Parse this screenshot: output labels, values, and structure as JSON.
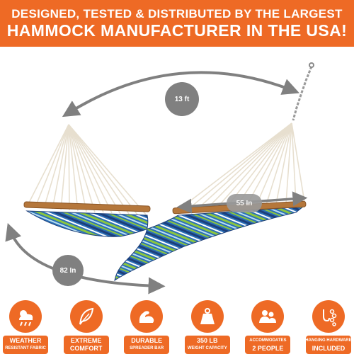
{
  "banner": {
    "line1": "DESIGNED, TESTED & DISTRIBUTED BY THE LARGEST",
    "line2": "HAMMOCK MANUFACTURER IN THE USA!",
    "color": "#ee6a25"
  },
  "dimensions": {
    "length": "13 ft",
    "spreader": "55 In",
    "bed": "82 In"
  },
  "colors": {
    "accent": "#ee6a25",
    "dim_badge": "#808080",
    "stripe_blue": "#2a6fb8",
    "stripe_green": "#8cc63f",
    "stripe_navy": "#1d3f7a",
    "wood": "#b5773b"
  },
  "features": [
    {
      "icon": "weather-icon",
      "line1": "WEATHER",
      "line2": "RESISTANT FABRIC"
    },
    {
      "icon": "feather-icon",
      "line1": "EXTREME",
      "line2": "COMFORT"
    },
    {
      "icon": "muscle-arm-icon",
      "line1": "DURABLE",
      "line2": "SPREADER BAR"
    },
    {
      "icon": "weight-icon",
      "line1": "350 LB",
      "line2": "WEIGHT CAPACITY"
    },
    {
      "icon": "people-icon",
      "line1": "ACCOMMODATES",
      "line2": "2 PEOPLE"
    },
    {
      "icon": "hooks-icon",
      "line1": "HANGING HARDWARE",
      "line2": "INCLUDED"
    }
  ]
}
